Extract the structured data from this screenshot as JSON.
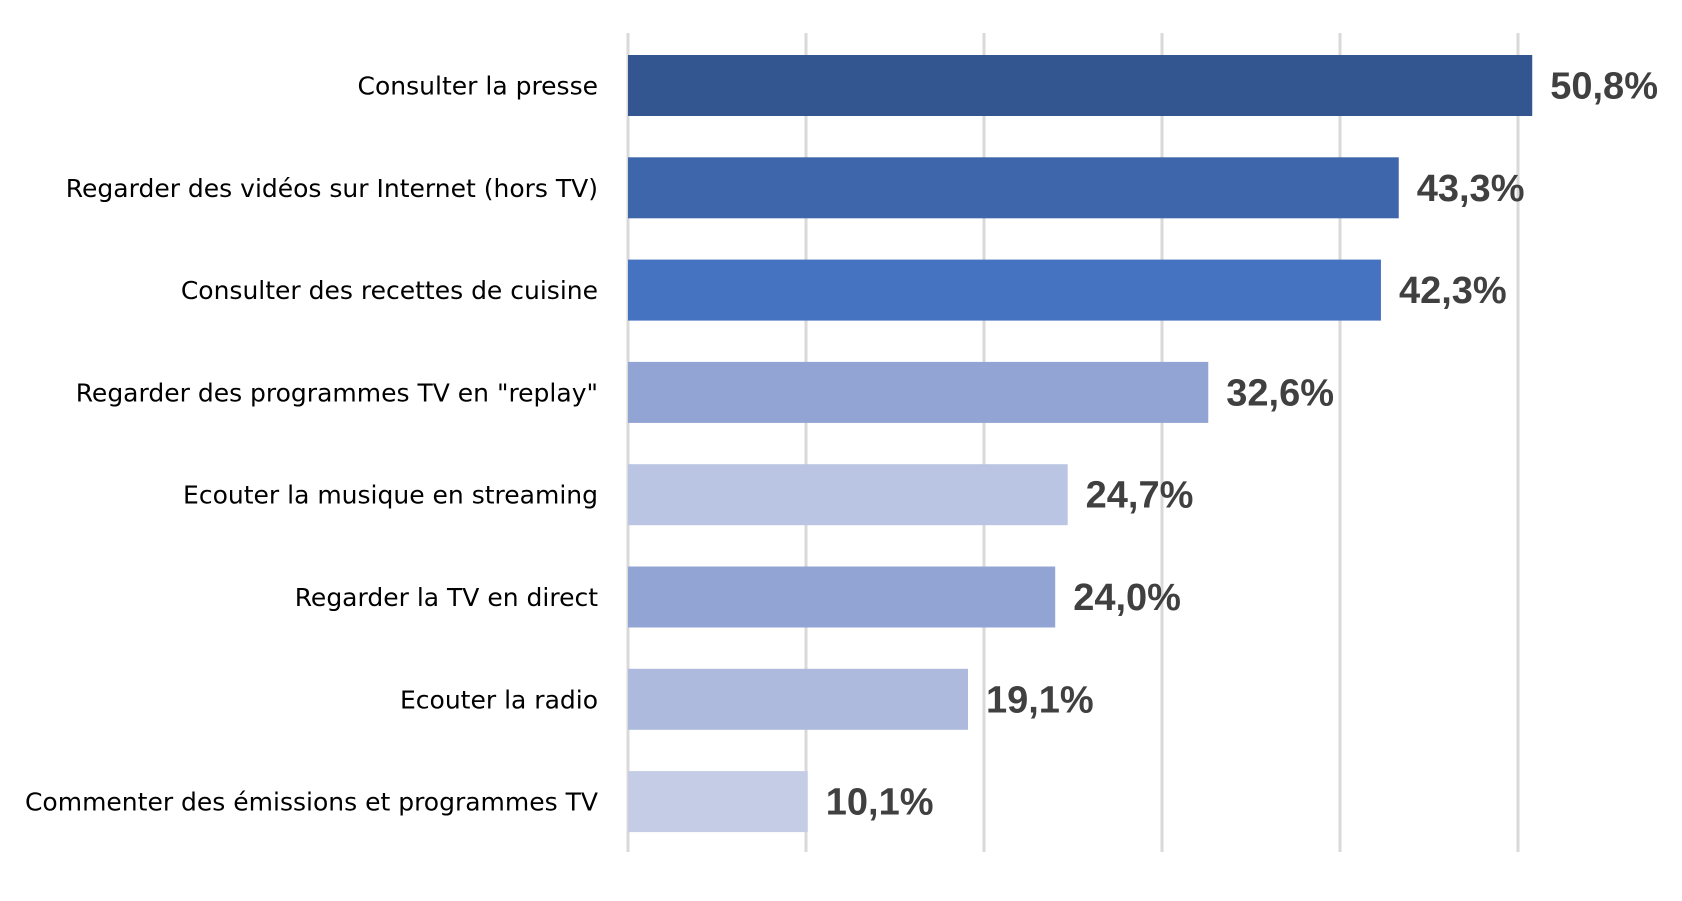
{
  "chart_data": {
    "type": "bar",
    "orientation": "horizontal",
    "title": "",
    "xlabel": "",
    "ylabel": "",
    "xlim": [
      0,
      50
    ],
    "grid": true,
    "categories": [
      "Consulter la presse",
      "Regarder des vidéos sur Internet (hors TV)",
      "Consulter des recettes de cuisine",
      "Regarder des programmes TV en \"replay\"",
      "Ecouter la musique en streaming",
      "Regarder la TV en direct",
      "Ecouter la radio",
      "Commenter des émissions et programmes TV"
    ],
    "values": [
      50.8,
      43.3,
      42.3,
      32.6,
      24.7,
      24.0,
      19.1,
      10.1
    ],
    "data_labels": [
      "50,8%",
      "43,3%",
      "42,3%",
      "32,6%",
      "24,7%",
      "24,0%",
      "19,1%",
      "10,1%"
    ],
    "colors": [
      "#335690",
      "#3e66aa",
      "#4673c1",
      "#91a4d3",
      "#bac5e3",
      "#91a4d3",
      "#adbadd",
      "#c5cde6"
    ]
  }
}
